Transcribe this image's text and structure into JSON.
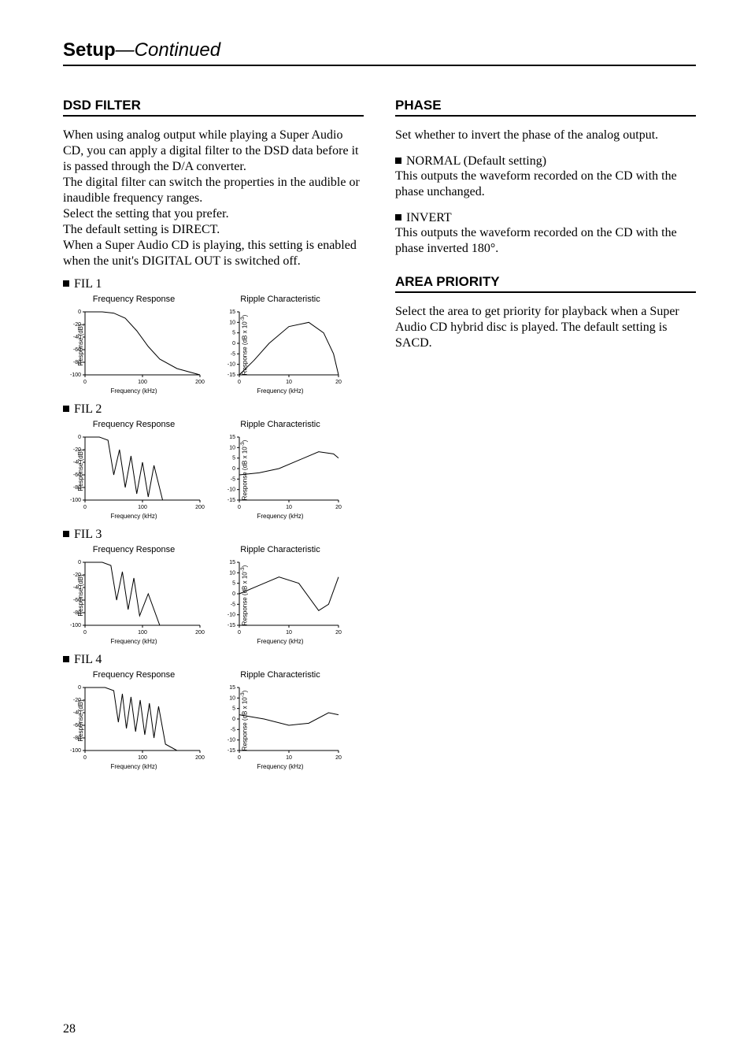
{
  "header": {
    "bold": "Setup",
    "italic": "—Continued"
  },
  "page_number": "28",
  "left": {
    "dsd_filter_title": "DSD FILTER",
    "dsd_paragraph": "When using analog output while playing a Super Audio CD, you can apply a digital filter to the DSD data before it is passed through the D/A converter.\nThe digital filter can switch the properties in the audible or inaudible frequency ranges.\nSelect the setting that you prefer.\nThe default setting is DIRECT.\nWhen a Super Audio CD is playing, this setting is enabled when the unit's DIGITAL OUT is switched off.",
    "fil_labels": [
      "FIL 1",
      "FIL 2",
      "FIL 3",
      "FIL 4"
    ],
    "freq_chart": {
      "title": "Frequency Response",
      "xlabel": "Frequency (kHz)",
      "ylabel": "Response (dB)",
      "xlim": [
        0,
        200
      ],
      "x_ticks": [
        0,
        100,
        200
      ],
      "ylim": [
        -100,
        0
      ],
      "y_ticks": [
        0,
        -20,
        -40,
        -60,
        -80,
        -100
      ],
      "axis_color": "#000000",
      "line_color": "#000000",
      "line_width": 1,
      "w": 180,
      "h": 100,
      "title_fontsize": 11,
      "tick_fontsize": 7,
      "label_fontsize": 8
    },
    "ripple_chart": {
      "title": "Ripple Characteristic",
      "xlabel": "Frequency (kHz)",
      "ylabel": "Response (dB x 10⁻³)",
      "xlim": [
        0,
        20
      ],
      "x_ticks": [
        0,
        10,
        20
      ],
      "ylim": [
        -15,
        15
      ],
      "y_ticks": [
        15,
        10,
        5,
        0,
        -5,
        -10,
        -15
      ],
      "axis_color": "#000000",
      "line_color": "#000000",
      "line_width": 1,
      "w": 160,
      "h": 100,
      "title_fontsize": 11,
      "tick_fontsize": 7,
      "label_fontsize": 8
    },
    "fil_curves": {
      "freq": [
        [
          [
            0,
            0
          ],
          [
            30,
            0
          ],
          [
            50,
            -2
          ],
          [
            70,
            -10
          ],
          [
            90,
            -30
          ],
          [
            110,
            -55
          ],
          [
            130,
            -75
          ],
          [
            160,
            -90
          ],
          [
            200,
            -100
          ]
        ],
        [
          [
            0,
            0
          ],
          [
            25,
            0
          ],
          [
            40,
            -5
          ],
          [
            50,
            -60
          ],
          [
            60,
            -20
          ],
          [
            70,
            -80
          ],
          [
            80,
            -30
          ],
          [
            90,
            -90
          ],
          [
            100,
            -40
          ],
          [
            110,
            -95
          ],
          [
            120,
            -45
          ],
          [
            135,
            -100
          ],
          [
            200,
            -100
          ]
        ],
        [
          [
            0,
            0
          ],
          [
            30,
            0
          ],
          [
            45,
            -5
          ],
          [
            55,
            -60
          ],
          [
            65,
            -15
          ],
          [
            75,
            -75
          ],
          [
            85,
            -25
          ],
          [
            95,
            -85
          ],
          [
            110,
            -50
          ],
          [
            130,
            -100
          ],
          [
            200,
            -100
          ]
        ],
        [
          [
            0,
            0
          ],
          [
            35,
            0
          ],
          [
            50,
            -5
          ],
          [
            58,
            -55
          ],
          [
            65,
            -10
          ],
          [
            72,
            -65
          ],
          [
            80,
            -15
          ],
          [
            88,
            -70
          ],
          [
            96,
            -20
          ],
          [
            104,
            -75
          ],
          [
            112,
            -25
          ],
          [
            120,
            -80
          ],
          [
            128,
            -30
          ],
          [
            140,
            -90
          ],
          [
            160,
            -100
          ],
          [
            200,
            -100
          ]
        ]
      ],
      "ripple": [
        [
          [
            0,
            -15
          ],
          [
            3,
            -8
          ],
          [
            6,
            0
          ],
          [
            10,
            8
          ],
          [
            14,
            10
          ],
          [
            17,
            5
          ],
          [
            19,
            -5
          ],
          [
            20,
            -15
          ]
        ],
        [
          [
            0,
            -3
          ],
          [
            4,
            -2
          ],
          [
            8,
            0
          ],
          [
            12,
            4
          ],
          [
            16,
            8
          ],
          [
            19,
            7
          ],
          [
            20,
            5
          ]
        ],
        [
          [
            0,
            0
          ],
          [
            4,
            4
          ],
          [
            8,
            8
          ],
          [
            12,
            5
          ],
          [
            16,
            -8
          ],
          [
            18,
            -5
          ],
          [
            20,
            8
          ]
        ],
        [
          [
            0,
            2
          ],
          [
            5,
            0
          ],
          [
            10,
            -3
          ],
          [
            14,
            -2
          ],
          [
            18,
            3
          ],
          [
            20,
            2
          ]
        ]
      ]
    }
  },
  "right": {
    "phase_title": "PHASE",
    "phase_intro": "Set whether to invert the phase of the analog output.",
    "normal_label": "NORMAL (Default setting)",
    "normal_text": "This outputs the waveform recorded on the CD with the phase unchanged.",
    "invert_label": "INVERT",
    "invert_text": "This outputs the waveform recorded on the CD with the phase inverted 180°.",
    "area_title": "AREA PRIORITY",
    "area_text": "Select the area to get priority for playback when a Super Audio CD hybrid disc is played. The default setting is SACD."
  }
}
